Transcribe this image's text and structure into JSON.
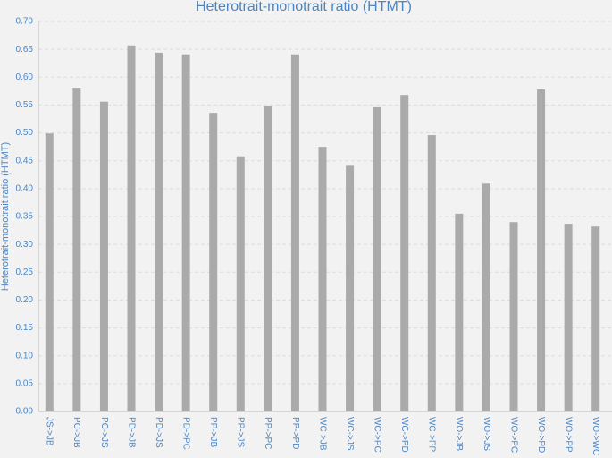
{
  "chart_data": {
    "type": "bar",
    "title": "Heterotrait-monotrait ratio (HTMT)",
    "y_label": "Heterotrait-monotrait ratio (HTMT)",
    "categories": [
      "JS->JB",
      "PC->JB",
      "PC->JS",
      "PD->JB",
      "PD->JS",
      "PD->PC",
      "PP->JB",
      "PP->JS",
      "PP->PC",
      "PP->PD",
      "WC->JB",
      "WC->JS",
      "WC->PC",
      "WC->PD",
      "WC->PP",
      "WO->JB",
      "WO->JS",
      "WO->PC",
      "WO->PD",
      "WO->PP",
      "WO->WC"
    ],
    "values": [
      0.499,
      0.581,
      0.556,
      0.657,
      0.644,
      0.641,
      0.536,
      0.458,
      0.549,
      0.641,
      0.475,
      0.441,
      0.546,
      0.568,
      0.496,
      0.355,
      0.409,
      0.34,
      0.578,
      0.337,
      0.332
    ],
    "color": "#aaaaaa",
    "ylim": [
      0,
      0.7
    ],
    "yticks": [
      {
        "value": 0,
        "label": "0.00"
      },
      {
        "value": 0.05,
        "label": "0.05"
      },
      {
        "value": 0.1,
        "label": "0.10"
      },
      {
        "value": 0.15,
        "label": "0.15"
      },
      {
        "value": 0.2,
        "label": "0.20"
      },
      {
        "value": 0.25,
        "label": "0.25"
      },
      {
        "value": 0.3,
        "label": "0.30"
      },
      {
        "value": 0.35,
        "label": "0.35"
      },
      {
        "value": 0.4,
        "label": "0.40"
      },
      {
        "value": 0.45,
        "label": "0.45"
      },
      {
        "value": 0.5,
        "label": "0.50"
      },
      {
        "value": 0.55,
        "label": "0.55"
      },
      {
        "value": 0.6,
        "label": "0.60"
      },
      {
        "value": 0.65,
        "label": "0.65"
      },
      {
        "value": 0.7,
        "label": "0.70"
      }
    ],
    "grid": true
  }
}
